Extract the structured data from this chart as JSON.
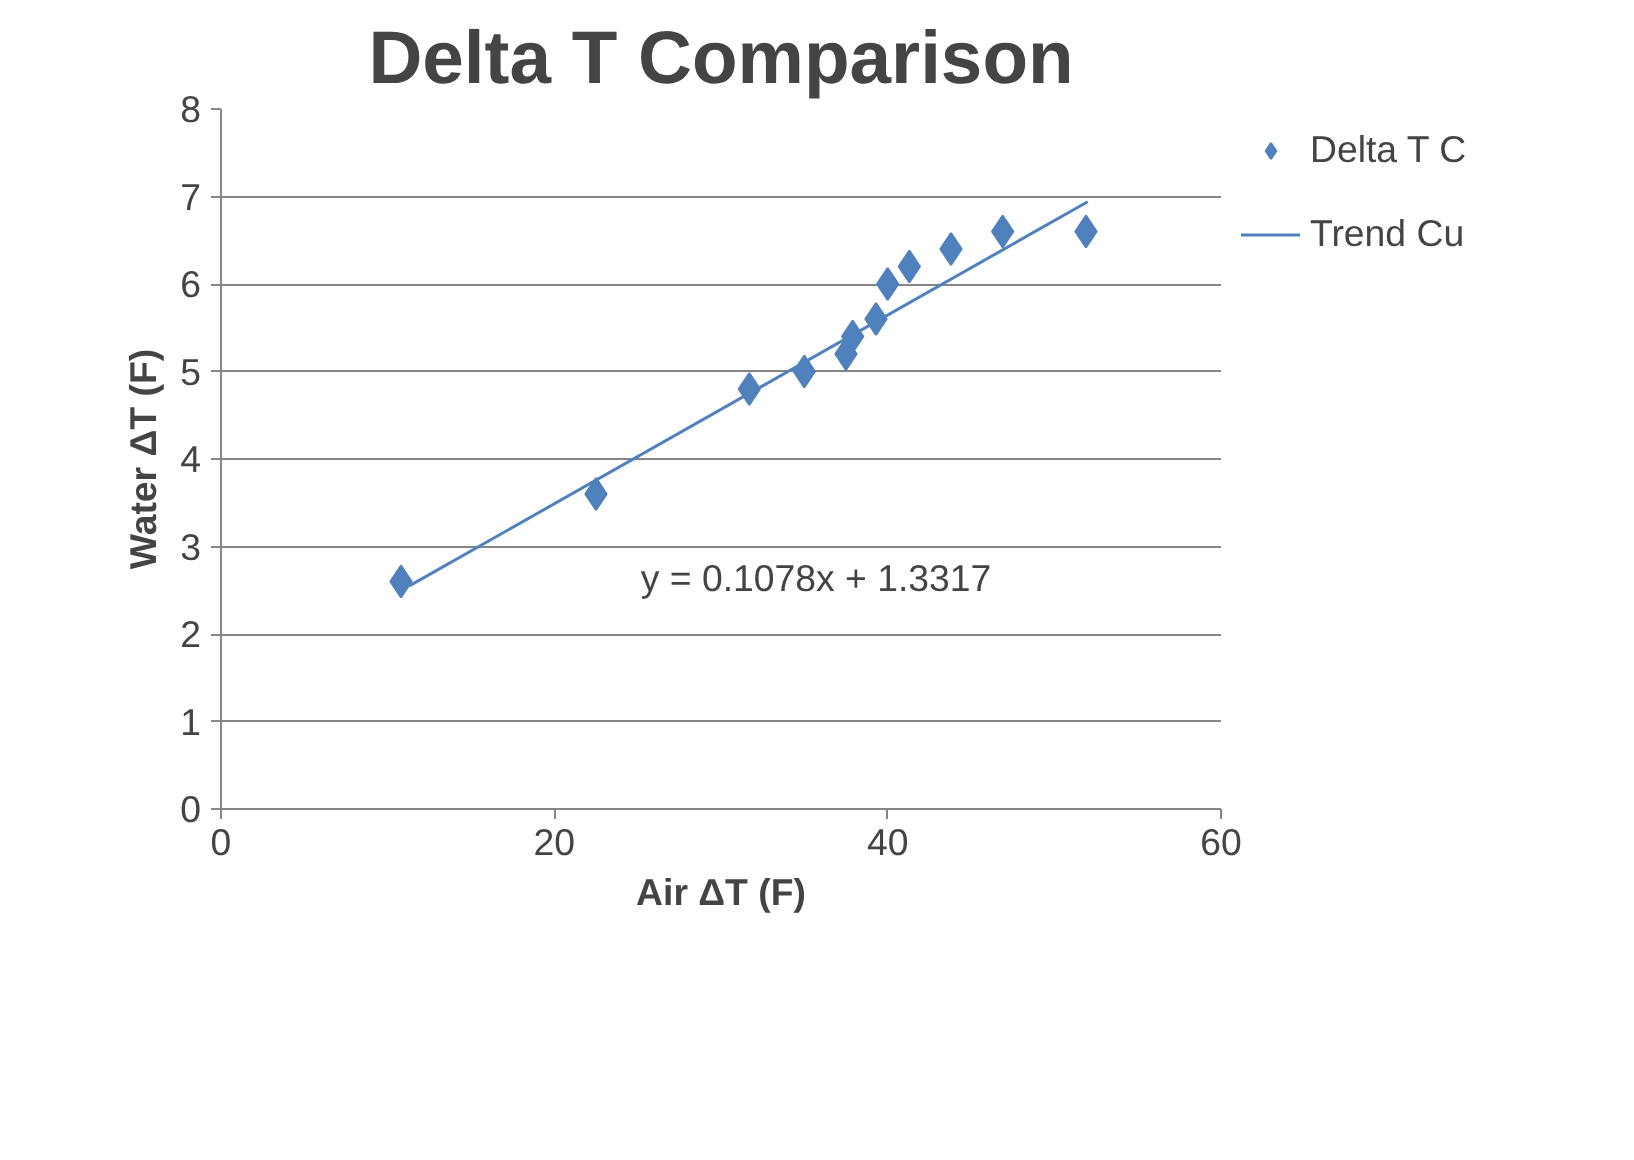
{
  "chart_data": {
    "type": "scatter",
    "title": "Delta T Comparison",
    "xlabel": "Air ΔT (F)",
    "ylabel": "Water ΔT (F)",
    "series": [
      {
        "name": "Delta T C",
        "color": "#4f81bd",
        "marker": "diamond",
        "x": [
          10.8,
          22.5,
          31.7,
          35.0,
          37.5,
          37.9,
          39.3,
          40.0,
          41.3,
          43.8,
          46.9,
          51.9
        ],
        "values": [
          2.6,
          3.6,
          4.8,
          5.0,
          5.2,
          5.4,
          5.6,
          6.0,
          6.2,
          6.4,
          6.6,
          6.6
        ]
      },
      {
        "name": "Trend Cu",
        "type": "line",
        "color": "#4f81bd",
        "line_style": "solid",
        "x": [
          11.3,
          52.0
        ],
        "values": [
          2.55,
          6.94
        ]
      }
    ],
    "annotations": [
      "y = 0.1078x + 1.3317"
    ],
    "xlim": [
      0,
      60
    ],
    "xticks": [
      0,
      20,
      40,
      60
    ],
    "ylim": [
      0,
      8
    ],
    "yticks": [
      0,
      1,
      2,
      3,
      4,
      5,
      6,
      7,
      8
    ],
    "grid": "y",
    "legend": "right"
  }
}
